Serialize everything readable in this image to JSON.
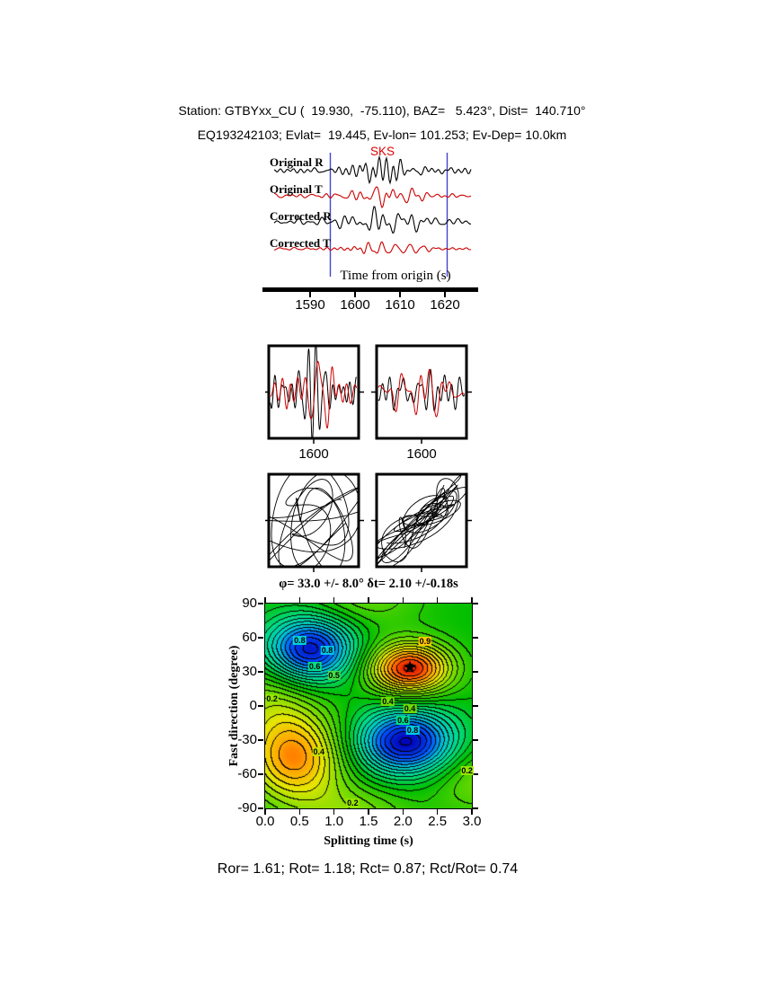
{
  "station": {
    "name": "GTBYxx_CU",
    "lat": 19.93,
    "lon": -75.11,
    "baz_deg": 5.423,
    "dist_deg": 140.71,
    "event_id": "EQ193242103",
    "ev_lat": 19.445,
    "ev_lon": 101.253,
    "ev_dep_km": 10.0
  },
  "header": {
    "line1": "Station: GTBYxx_CU (  19.930,  -75.110), BAZ=   5.423°, Dist=  140.710°",
    "line2": "EQ193242103; Evlat=  19.445, Ev-lon= 101.253; Ev-Dep= 10.0km"
  },
  "chart_data": [
    {
      "type": "line",
      "panel": "seismograms",
      "xlabel": "Time from origin (s)",
      "x_tick_labels": [
        "1590",
        "1600",
        "1610",
        "1620"
      ],
      "x_tick_values": [
        1590,
        1600,
        1610,
        1620
      ],
      "t_range": [
        1582,
        1626
      ],
      "phase_label": "SKS",
      "phase_color": "#dd0000",
      "window_s": [
        1594.5,
        1620.5
      ],
      "window_color": "#4444cc",
      "traces": [
        {
          "label": "Original R",
          "color": "#000000",
          "baseline": 30,
          "amp": 12,
          "seed": 101
        },
        {
          "label": "Original T",
          "color": "#cc0000",
          "baseline": 58,
          "amp": 9,
          "seed": 202
        },
        {
          "label": "Corrected R",
          "color": "#000000",
          "baseline": 87,
          "amp": 12,
          "seed": 303
        },
        {
          "label": "Corrected T",
          "color": "#cc0000",
          "baseline": 117,
          "amp": 7,
          "seed": 404
        }
      ]
    },
    {
      "type": "line",
      "panel": "windowed-waveforms",
      "boxes": [
        {
          "name": "original-window",
          "tick_label": "1600",
          "black_seed": 11,
          "red_seed": 12,
          "black_amp": 30,
          "red_amp": 26
        },
        {
          "name": "corrected-window",
          "tick_label": "1600",
          "black_seed": 13,
          "red_seed": 14,
          "black_amp": 30,
          "red_amp": 24
        }
      ]
    },
    {
      "type": "line",
      "panel": "particle-motion",
      "boxes": [
        {
          "name": "original-particle-motion",
          "style": "elliptical",
          "seeds": [
            21,
            22,
            23
          ]
        },
        {
          "name": "corrected-particle-motion",
          "style": "diagonal",
          "seeds": [
            31,
            32,
            33
          ]
        }
      ]
    },
    {
      "type": "heatmap",
      "panel": "splitting-error-surface",
      "title": "φ= 33.0 +/- 8.0° δt= 2.10 +/-0.18s",
      "xlabel": "Splitting time (s)",
      "ylabel": "Fast direction (degree)",
      "xlim": [
        0,
        3
      ],
      "ylim": [
        -90,
        90
      ],
      "x_tick_labels": [
        "0.0",
        "0.5",
        "1.0",
        "1.5",
        "2.0",
        "2.5",
        "3.0"
      ],
      "x_tick_values": [
        0,
        0.5,
        1,
        1.5,
        2,
        2.5,
        3
      ],
      "y_tick_labels": [
        "90",
        "60",
        "30",
        "0",
        "-30",
        "-60",
        "-90"
      ],
      "y_tick_values": [
        90,
        60,
        30,
        0,
        -30,
        -60,
        -90
      ],
      "best_solution": {
        "phi_deg": 33.0,
        "phi_err_deg": 8.0,
        "dt_s": 2.1,
        "dt_err_s": 0.18,
        "x": 2.1,
        "y": 33,
        "marker_glyph": "★"
      },
      "colormap_stops": [
        [
          -1.05,
          "#0000b4"
        ],
        [
          -0.78,
          "#0050ff"
        ],
        [
          -0.52,
          "#00c8d2"
        ],
        [
          -0.26,
          "#00dc82"
        ],
        [
          0,
          "#00be00"
        ],
        [
          0.3,
          "#78dc00"
        ],
        [
          0.55,
          "#e6e600"
        ],
        [
          0.75,
          "#ffaa00"
        ],
        [
          0.92,
          "#ff5000"
        ],
        [
          1.1,
          "#cd0000"
        ]
      ],
      "contour_interval": 0.085,
      "gaussians": [
        {
          "a": -1.0,
          "x": 0.65,
          "y": 50,
          "sx": 0.45,
          "sy": 20
        },
        {
          "a": -1.05,
          "x": 2.05,
          "y": -32,
          "sx": 0.5,
          "sy": 20
        },
        {
          "a": 1.05,
          "x": 2.1,
          "y": 33,
          "sx": 0.42,
          "sy": 16
        },
        {
          "a": 0.8,
          "x": 0.42,
          "y": -46,
          "sx": 0.5,
          "sy": 28
        },
        {
          "a": 0.28,
          "x": 0.05,
          "y": 5,
          "sx": 0.5,
          "sy": 25
        },
        {
          "a": 0.3,
          "x": 1.3,
          "y": -97,
          "sx": 0.6,
          "sy": 20
        },
        {
          "a": 0.28,
          "x": 3.1,
          "y": -65,
          "sx": 0.5,
          "sy": 22
        },
        {
          "a": 0.25,
          "x": 1.45,
          "y": 97,
          "sx": 0.6,
          "sy": 20
        }
      ],
      "contour_labels": [
        {
          "text": "0.8",
          "x": 0.5,
          "y": 58,
          "bg": "#00d2dc"
        },
        {
          "text": "0.8",
          "x": 0.9,
          "y": 49,
          "bg": "#00c8e6"
        },
        {
          "text": "0.6",
          "x": 0.72,
          "y": 35,
          "bg": "#00dc8c"
        },
        {
          "text": "0.5",
          "x": 1.0,
          "y": 27,
          "bg": "#46dc46"
        },
        {
          "text": "0.2",
          "x": 0.1,
          "y": 6,
          "bg": "#96e600"
        },
        {
          "text": "0.9",
          "x": 2.32,
          "y": 57,
          "bg": "#ffc800"
        },
        {
          "text": "0.4",
          "x": 1.78,
          "y": 4,
          "bg": "#6edc00"
        },
        {
          "text": "0.4",
          "x": 2.1,
          "y": -2,
          "bg": "#6edc00"
        },
        {
          "text": "0.6",
          "x": 2.0,
          "y": -13,
          "bg": "#00dc8c"
        },
        {
          "text": "0.8",
          "x": 2.14,
          "y": -21,
          "bg": "#00c8e6"
        },
        {
          "text": "0.4",
          "x": 0.78,
          "y": -40,
          "bg": "#c8dc00"
        },
        {
          "text": "0.2",
          "x": 1.27,
          "y": -85,
          "bg": "#96e600"
        },
        {
          "text": "0.2",
          "x": 2.93,
          "y": -57,
          "bg": "#96e600"
        }
      ]
    }
  ],
  "footer": {
    "text": "Ror= 1.61; Rot= 1.18; Rct= 0.87; Rct/Rot= 0.74",
    "Ror": 1.61,
    "Rot": 1.18,
    "Rct": 0.87,
    "Rct_over_Rot": 0.74
  }
}
